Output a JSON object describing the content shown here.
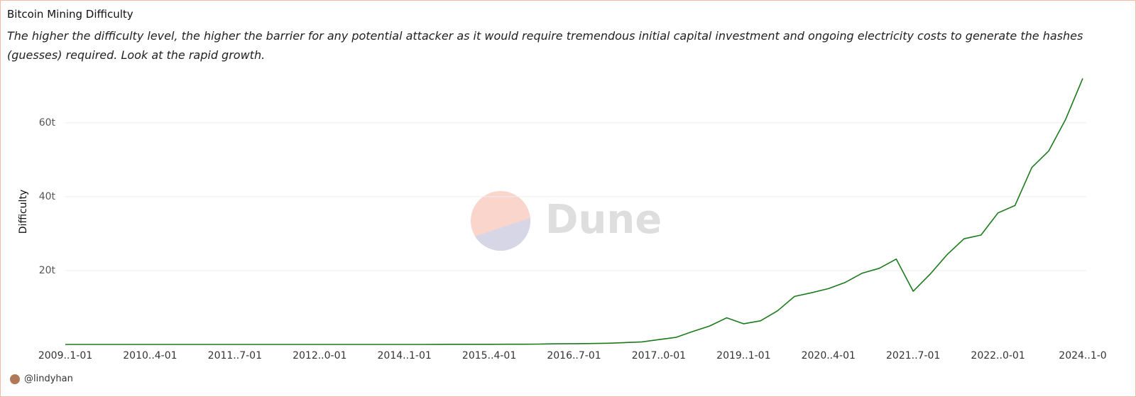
{
  "title": "Bitcoin Mining Difficulty",
  "subtitle": "The higher the difficulty level, the higher the barrier for any potential attacker as it would require tremendous initial capital investment and ongoing electricity costs to generate the hashes (guesses) required. Look at the rapid growth.",
  "watermark": "Dune",
  "footer": "@lindyhan",
  "chart_data": {
    "type": "line",
    "ylabel": "Difficulty",
    "color": "#1b7a1b",
    "categories": [
      "2009..1-01",
      null,
      null,
      null,
      null,
      "2010..4-01",
      null,
      null,
      null,
      null,
      "2011..7-01",
      null,
      null,
      null,
      null,
      "2012..0-01",
      null,
      null,
      null,
      null,
      "2014..1-01",
      null,
      null,
      null,
      null,
      "2015..4-01",
      null,
      null,
      null,
      null,
      "2016..7-01",
      null,
      null,
      null,
      null,
      "2017..0-01",
      null,
      null,
      null,
      null,
      "2019..1-01",
      null,
      null,
      null,
      null,
      "2020..4-01",
      null,
      null,
      null,
      null,
      "2021..7-01",
      null,
      null,
      null,
      null,
      "2022..0-01",
      null,
      null,
      null,
      null,
      "2024..1-0"
    ],
    "values": [
      0,
      0,
      0,
      0,
      0,
      0,
      0,
      0,
      0,
      0,
      0,
      0,
      0,
      0,
      0,
      0,
      0,
      0,
      0,
      0.0004,
      0.0015,
      0.006,
      0.017,
      0.035,
      0.04,
      0.047,
      0.05,
      0.06,
      0.1,
      0.17,
      0.21,
      0.25,
      0.32,
      0.5,
      0.7,
      1.3,
      1.9,
      3.5,
      5,
      7.2,
      5.6,
      6.4,
      9.1,
      13,
      14,
      15.1,
      16.8,
      19.3,
      20.6,
      23.1,
      14.4,
      19,
      24.3,
      28.6,
      29.6,
      35.6,
      37.6,
      47.9,
      52.4,
      61,
      72
    ],
    "ylim": [
      0,
      74
    ],
    "yticks": [
      {
        "value": 20,
        "label": "20t"
      },
      {
        "value": 40,
        "label": "40t"
      },
      {
        "value": 60,
        "label": "60t"
      }
    ],
    "grid": true
  }
}
